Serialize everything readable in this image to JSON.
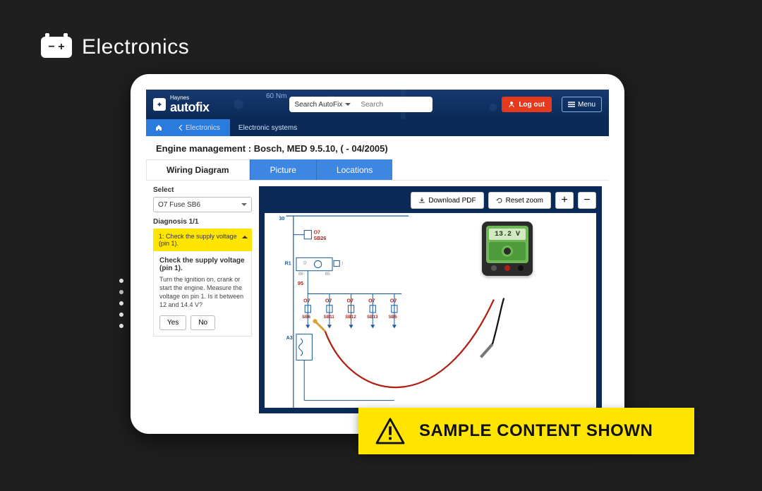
{
  "page": {
    "section_title": "Electronics"
  },
  "app": {
    "brand_small": "Haynes",
    "brand_large": "autofix",
    "torque_decor": "60 Nm",
    "search_scope": "Search AutoFix",
    "search_placeholder": "Search",
    "logout": "Log out",
    "menu": "Menu"
  },
  "breadcrumb": {
    "back_label": "Electronics",
    "current": "Electronic systems"
  },
  "title": "Engine management :  Bosch, MED 9.5.10, ( - 04/2005)",
  "tabs": {
    "wiring": "Wiring Diagram",
    "picture": "Picture",
    "locations": "Locations"
  },
  "sidebar": {
    "select_label": "Select",
    "select_value": "O7  Fuse  SB6",
    "diagnosis_heading": "Diagnosis 1/1",
    "step_header": "1: Check the supply voltage (pin 1).",
    "step_title": "Check the supply voltage (pin 1).",
    "step_desc": "Turn the ignition on, crank or start the engine. Measure the voltage on pin 1. Is it between 12 and 14.4 V?",
    "yes": "Yes",
    "no": "No"
  },
  "toolbar": {
    "download": "Download PDF",
    "reset": "Reset zoom",
    "zoom_in": "+",
    "zoom_out": "−"
  },
  "diagram": {
    "top_node": "30",
    "o7_sb": [
      "O7",
      "SB26"
    ],
    "r1": "R1",
    "d_label": "D",
    "pins": [
      "86",
      "85"
    ],
    "i_label": "I",
    "wire_label": "95",
    "row_labels": [
      [
        "O7",
        "SB6"
      ],
      [
        "O7",
        "SB11"
      ],
      [
        "O7",
        "SB12"
      ],
      [
        "O7",
        "SB13"
      ],
      [
        "O7",
        "SB5"
      ]
    ],
    "a3": "A3",
    "meter_reading": "13.2 V",
    "colors": {
      "wires": "#1a5c9a",
      "labels": "#b02015",
      "probe_red": "#b02015",
      "probe_black": "#111111"
    }
  },
  "banner": {
    "text": "SAMPLE CONTENT SHOWN"
  }
}
